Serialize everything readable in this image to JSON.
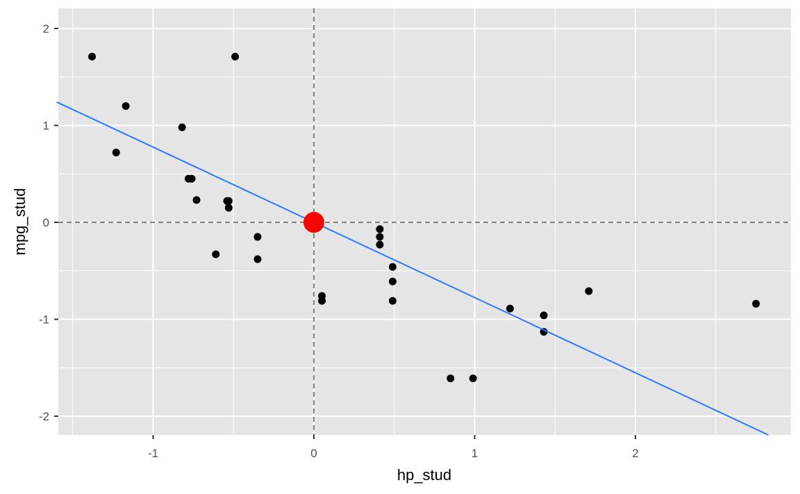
{
  "chart_data": {
    "type": "scatter",
    "title": "",
    "xlabel": "hp_stud",
    "ylabel": "mpg_stud",
    "xlim": [
      -1.6,
      2.9
    ],
    "ylim": [
      -2.2,
      2.2
    ],
    "x_ticks": [
      -1,
      0,
      1,
      2
    ],
    "y_ticks": [
      -2,
      -1,
      0,
      1,
      2
    ],
    "x_tick_labels": [
      "-1",
      "0",
      "1",
      "2"
    ],
    "y_tick_labels": [
      "-2",
      "-1",
      "0",
      "1",
      "2"
    ],
    "grid": true,
    "background": "#e5e5e5",
    "grid_color": "#ffffff",
    "point_color": "#000000",
    "points": [
      {
        "x": -1.38,
        "y": 1.71
      },
      {
        "x": -0.49,
        "y": 1.71
      },
      {
        "x": -1.17,
        "y": 1.2
      },
      {
        "x": -0.82,
        "y": 0.98
      },
      {
        "x": -1.23,
        "y": 0.72
      },
      {
        "x": -0.78,
        "y": 0.45
      },
      {
        "x": -0.76,
        "y": 0.45
      },
      {
        "x": -0.73,
        "y": 0.23
      },
      {
        "x": -0.54,
        "y": 0.22
      },
      {
        "x": -0.53,
        "y": 0.22
      },
      {
        "x": -0.53,
        "y": 0.15
      },
      {
        "x": -0.35,
        "y": -0.15
      },
      {
        "x": -0.61,
        "y": -0.33
      },
      {
        "x": -0.35,
        "y": -0.38
      },
      {
        "x": 0.05,
        "y": -0.76
      },
      {
        "x": 0.05,
        "y": -0.81
      },
      {
        "x": 0.41,
        "y": -0.07
      },
      {
        "x": 0.41,
        "y": -0.15
      },
      {
        "x": 0.41,
        "y": -0.23
      },
      {
        "x": 0.49,
        "y": -0.46
      },
      {
        "x": 0.49,
        "y": -0.61
      },
      {
        "x": 0.49,
        "y": -0.81
      },
      {
        "x": 0.85,
        "y": -1.61
      },
      {
        "x": 0.99,
        "y": -1.61
      },
      {
        "x": 1.22,
        "y": -0.89
      },
      {
        "x": 1.43,
        "y": -0.96
      },
      {
        "x": 1.43,
        "y": -1.13
      },
      {
        "x": 1.71,
        "y": -0.71
      },
      {
        "x": 2.75,
        "y": -0.84
      }
    ],
    "fit_line": {
      "intercept": 0.0,
      "slope": -0.776,
      "color": "#2979ff"
    },
    "reference_lines": {
      "x": 0,
      "y": 0,
      "style": "dashed",
      "color": "#808080"
    },
    "highlight_point": {
      "x": 0,
      "y": 0,
      "color": "#ff0000"
    }
  }
}
